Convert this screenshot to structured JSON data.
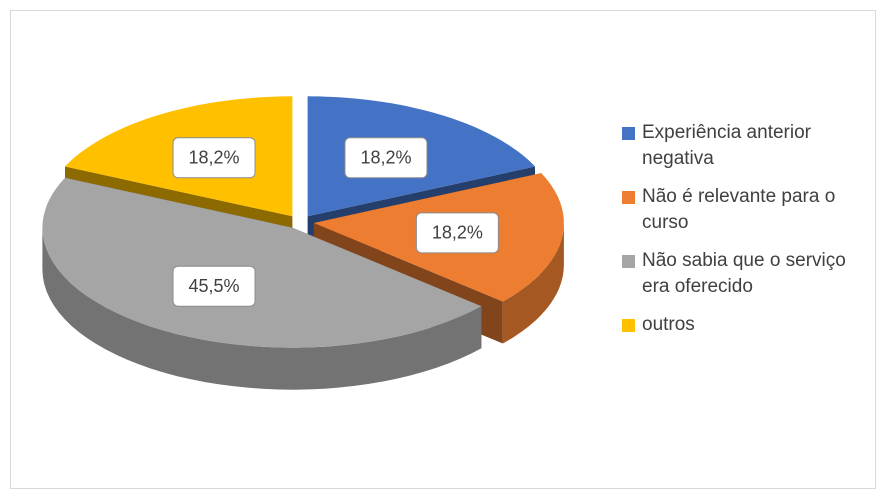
{
  "chart_data": {
    "type": "pie3d",
    "categories": [
      "Experiência anterior negativa",
      "Não é relevante para o curso",
      "Não sabia que o serviço era oferecido",
      "outros"
    ],
    "values": [
      18.2,
      18.2,
      45.5,
      18.2
    ],
    "value_labels": [
      "18,2%",
      "18,2%",
      "45,5%",
      "18,2%"
    ],
    "colors": [
      "#4472c4",
      "#ed7d31",
      "#a5a5a5",
      "#ffc000"
    ],
    "legend": "right"
  }
}
